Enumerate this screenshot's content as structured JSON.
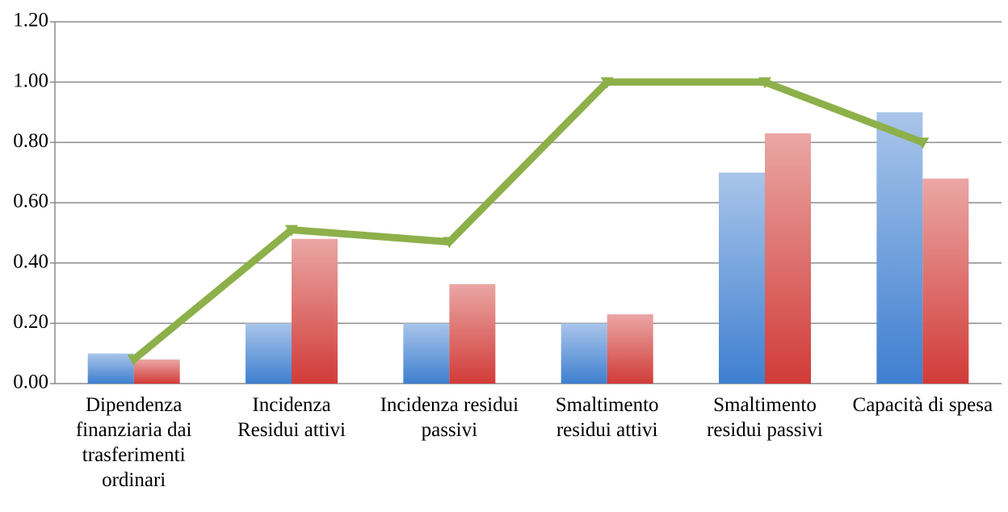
{
  "chart_data": {
    "type": "bar-line",
    "categories": [
      "Dipendenza finanziaria dai trasferimenti ordinari",
      "Incidenza Residui attivi",
      "Incidenza residui passivi",
      "Smaltimento residui attivi",
      "Smaltimento residui passivi",
      "Capacità di spesa"
    ],
    "series": [
      {
        "type": "bar",
        "color": "#3f7fd0",
        "values": [
          0.1,
          0.2,
          0.2,
          0.2,
          0.7,
          0.9
        ]
      },
      {
        "type": "bar",
        "color": "#d13b38",
        "values": [
          0.08,
          0.48,
          0.33,
          0.23,
          0.83,
          0.68
        ]
      },
      {
        "type": "line",
        "color": "#8db04a",
        "values": [
          0.08,
          0.51,
          0.47,
          1.0,
          1.0,
          0.8
        ]
      }
    ],
    "ylim": [
      0,
      1.2
    ],
    "yticks": [
      {
        "value": 0,
        "label": "0.00"
      },
      {
        "value": 0.2,
        "label": "0.20"
      },
      {
        "value": 0.4,
        "label": "0.40"
      },
      {
        "value": 0.6,
        "label": "0.60"
      },
      {
        "value": 0.8,
        "label": "0.80"
      },
      {
        "value": 1.0,
        "label": "1.00"
      },
      {
        "value": 1.2,
        "label": "1.20"
      }
    ],
    "grid": true
  }
}
